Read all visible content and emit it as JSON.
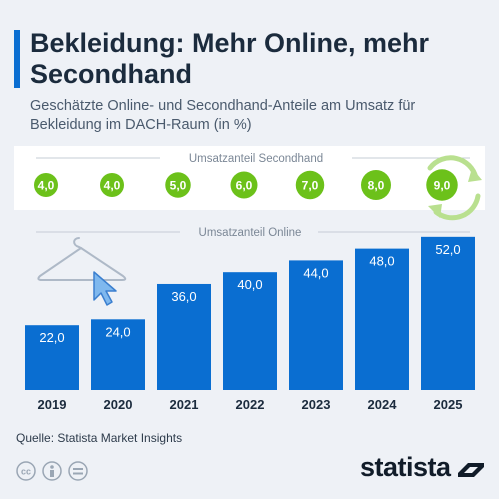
{
  "header": {
    "title": "Bekleidung: Mehr Online, mehr Secondhand",
    "subtitle": "Geschätzte Online- und Secondhand-Anteile am Umsatz für Bekleidung im DACH-Raum (in %)"
  },
  "footer": {
    "source": "Quelle: Statista Market Insights",
    "brand": "statista"
  },
  "colors": {
    "bar": "#0a6ed1",
    "circle": "#6cc11a",
    "circle_dark": "#55a80e",
    "background": "#eef1f6",
    "cursor": "#7fb8ee"
  },
  "icons": [
    "hanger-icon",
    "cursor-arrow-icon",
    "recycle-icon",
    "cc-icon",
    "person-icon",
    "equals-icon",
    "statista-logo-icon"
  ],
  "chart_data": [
    {
      "type": "bar",
      "title": "Umsatzanteil Online",
      "categories": [
        "2019",
        "2020",
        "2021",
        "2022",
        "2023",
        "2024",
        "2025"
      ],
      "values": [
        22.0,
        24.0,
        36.0,
        40.0,
        44.0,
        48.0,
        52.0
      ],
      "labels": [
        "22,0",
        "24,0",
        "36,0",
        "40,0",
        "44,0",
        "48,0",
        "52,0"
      ],
      "ylim": [
        0,
        55
      ],
      "grid": false,
      "legend": "none"
    },
    {
      "type": "table",
      "title": "Umsatzanteil Secondhand",
      "categories": [
        "2019",
        "2020",
        "2021",
        "2022",
        "2023",
        "2024",
        "2025"
      ],
      "values": [
        4.0,
        4.0,
        5.0,
        6.0,
        7.0,
        8.0,
        9.0
      ],
      "labels": [
        "4,0",
        "4,0",
        "5,0",
        "6,0",
        "7,0",
        "8,0",
        "9,0"
      ]
    }
  ]
}
